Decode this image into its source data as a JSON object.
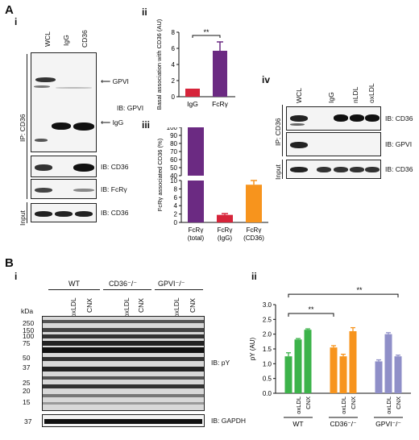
{
  "panels": {
    "A": "A",
    "B": "B",
    "Ai": "i",
    "Aii": "ii",
    "Aiii": "iii",
    "Aiv": "iv",
    "Bi": "i",
    "Bii": "ii"
  },
  "blot_Ai": {
    "lanes": [
      "WCL",
      "IgG",
      "CD36"
    ],
    "ip_label": "IP: CD36",
    "input_label": "Input",
    "arrow_gpvi": "GPVI",
    "arrow_igg": "IgG",
    "ib_gpvi": "IB: GPVI",
    "ib_cd36": "IB: CD36",
    "ib_fcr": "IB: FcRγ",
    "ib_cd36_input": "IB: CD36"
  },
  "blot_Aiv": {
    "lanes": [
      "WCL",
      "IgG",
      "nLDL",
      "oxLDL"
    ],
    "ip_label": "IP: CD36",
    "input_label": "Input",
    "ib_cd36": "IB: CD36",
    "ib_gpvi": "IB: GPVI",
    "ib_cd36_input": "IB: CD36"
  },
  "blot_Bi": {
    "groups": [
      "WT",
      "CD36⁻/⁻",
      "GPVI⁻/⁻"
    ],
    "lanes": [
      "",
      "oxLDL",
      "CNX",
      "",
      "oxLDL",
      "CNX",
      "",
      "oxLDL",
      "CNX"
    ],
    "kda_label": "kDa",
    "markers": [
      "250",
      "150",
      "100",
      "75",
      "50",
      "37",
      "25",
      "20",
      "15"
    ],
    "gapdh_marker": "37",
    "ib_py": "IB: pY",
    "ib_gapdh": "IB: GAPDH"
  },
  "chart_data": [
    {
      "type": "bar",
      "panel": "Aii",
      "categories": [
        "IgG",
        "FcRγ"
      ],
      "values": [
        1.0,
        5.7
      ],
      "errors": [
        0.0,
        1.1
      ],
      "colors": [
        "#d6243a",
        "#6b2a82"
      ],
      "ylabel": "Basal association with CD36 (AU)",
      "ylim": [
        0,
        8
      ],
      "yticks": [
        0,
        2,
        4,
        6,
        8
      ],
      "significance": "**"
    },
    {
      "type": "bar",
      "panel": "Aiii",
      "categories": [
        "FcRγ (total)",
        "FcRγ (IgG)",
        "FcRγ (CD36)"
      ],
      "category_lines": [
        [
          "FcRγ",
          "(total)"
        ],
        [
          "FcRγ",
          "(IgG)"
        ],
        [
          "FcRγ",
          "(CD36)"
        ]
      ],
      "values": [
        100,
        1.8,
        9.0
      ],
      "errors": [
        0,
        0.3,
        1.0
      ],
      "colors": [
        "#6b2a82",
        "#d6243a",
        "#f7941d"
      ],
      "ylabel": "FcRγ associated CD36 (%)",
      "ylim": [
        0,
        100
      ],
      "axis_break": [
        10,
        40
      ],
      "yticks_lower": [
        0,
        2,
        4,
        6,
        8,
        10
      ],
      "yticks_upper": [
        40,
        50,
        60,
        70,
        80,
        90,
        100
      ]
    },
    {
      "type": "bar",
      "panel": "Bii",
      "groups": [
        "WT",
        "CD36⁻/⁻",
        "GPVI⁻/⁻"
      ],
      "group_labels": [
        "WT",
        "CD36⁻/⁻",
        "GPVI⁻/⁻"
      ],
      "bar_labels": [
        "",
        "oxLDL",
        "CNX"
      ],
      "series": [
        {
          "group": "WT",
          "values": [
            1.25,
            1.82,
            2.15
          ],
          "errors": [
            0.12,
            0.03,
            0.03
          ],
          "colors": [
            "#3cb34a",
            "#3cb34a",
            "#3cb34a"
          ]
        },
        {
          "group": "CD36⁻/⁻",
          "values": [
            1.55,
            1.25,
            2.1
          ],
          "errors": [
            0.06,
            0.07,
            0.12
          ],
          "colors": [
            "#f7941d",
            "#f7941d",
            "#f7941d"
          ]
        },
        {
          "group": "GPVI⁻/⁻",
          "values": [
            1.08,
            2.0,
            1.25
          ],
          "errors": [
            0.05,
            0.05,
            0.04
          ],
          "colors": [
            "#8f8fc8",
            "#8f8fc8",
            "#8f8fc8"
          ]
        }
      ],
      "ylabel": "pY (AU)",
      "ylim": [
        0,
        3.0
      ],
      "yticks": [
        0,
        0.5,
        1.0,
        1.5,
        2.0,
        2.5,
        3.0
      ],
      "significance": [
        "**",
        "**"
      ]
    }
  ]
}
